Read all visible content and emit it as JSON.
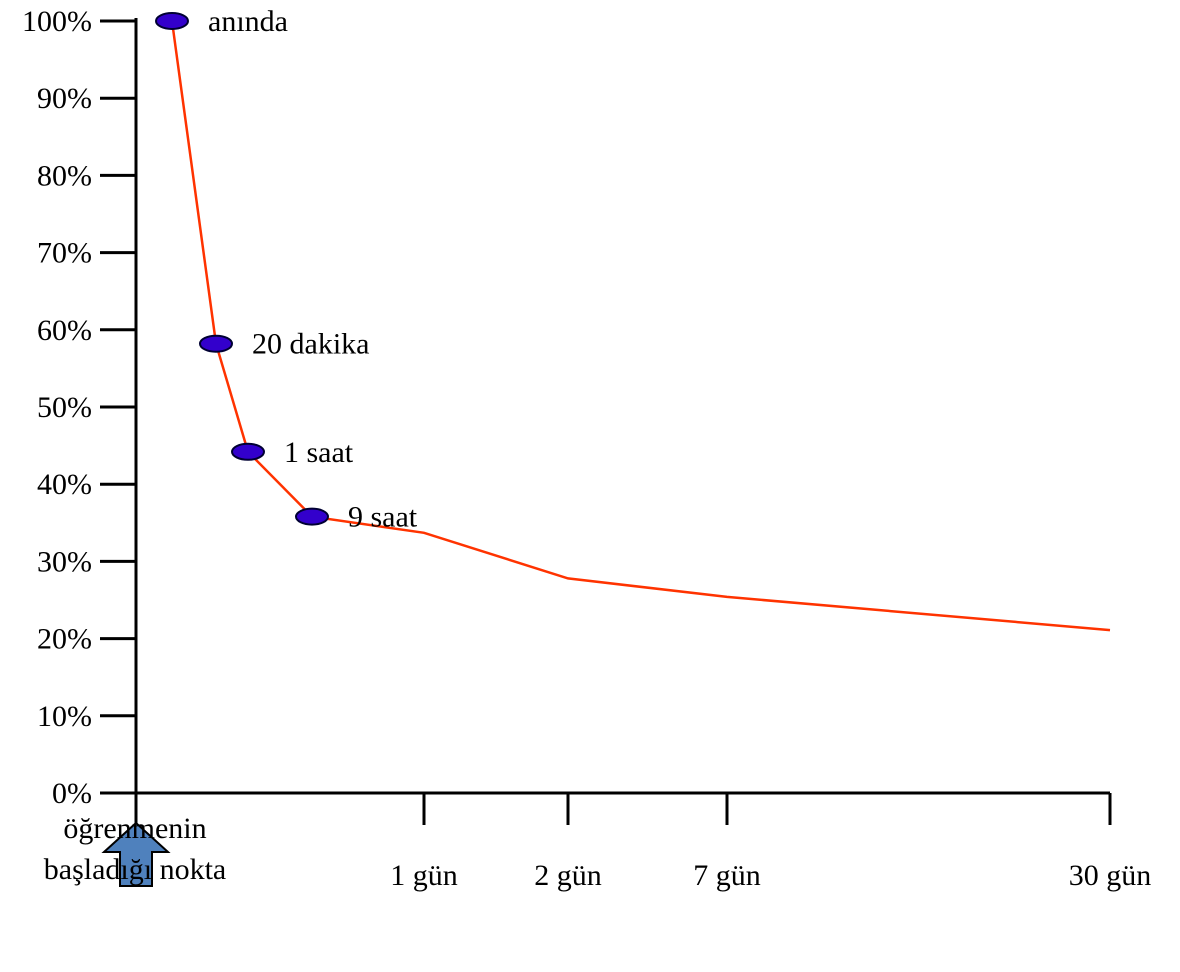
{
  "chart_data": {
    "type": "line",
    "title": "",
    "xlabel": "",
    "ylabel": "",
    "ylim": [
      0,
      100
    ],
    "y_ticks": [
      "0%",
      "10%",
      "20%",
      "30%",
      "40%",
      "50%",
      "60%",
      "70%",
      "80%",
      "90%",
      "100%"
    ],
    "x_ticks": [
      {
        "label": "1 gün",
        "x": 1
      },
      {
        "label": "2 gün",
        "x": 2
      },
      {
        "label": "7 gün",
        "x": 7
      },
      {
        "label": "30 gün",
        "x": 30
      }
    ],
    "series": [
      {
        "points": [
          {
            "x": 0.014,
            "y": 100,
            "label": "anında"
          },
          {
            "x": 0.2,
            "y": 58.2,
            "label": "20 dakika"
          },
          {
            "x": 0.35,
            "y": 44.2,
            "label": "1 saat"
          },
          {
            "x": 0.65,
            "y": 35.8,
            "label": "9 saat"
          },
          {
            "x": 1,
            "y": 33.7
          },
          {
            "x": 2,
            "y": 27.8
          },
          {
            "x": 7,
            "y": 25.4
          },
          {
            "x": 30,
            "y": 21.1
          }
        ]
      }
    ],
    "start_marker": {
      "label_lines": [
        "öğrenmenin",
        "başladığı nokta"
      ]
    },
    "colors": {
      "line": "#ff3300",
      "marker_fill": "#3300cc",
      "marker_stroke": "#000033",
      "arrow_fill": "#4f81bd",
      "arrow_stroke": "#000000",
      "axis": "#000000"
    }
  }
}
